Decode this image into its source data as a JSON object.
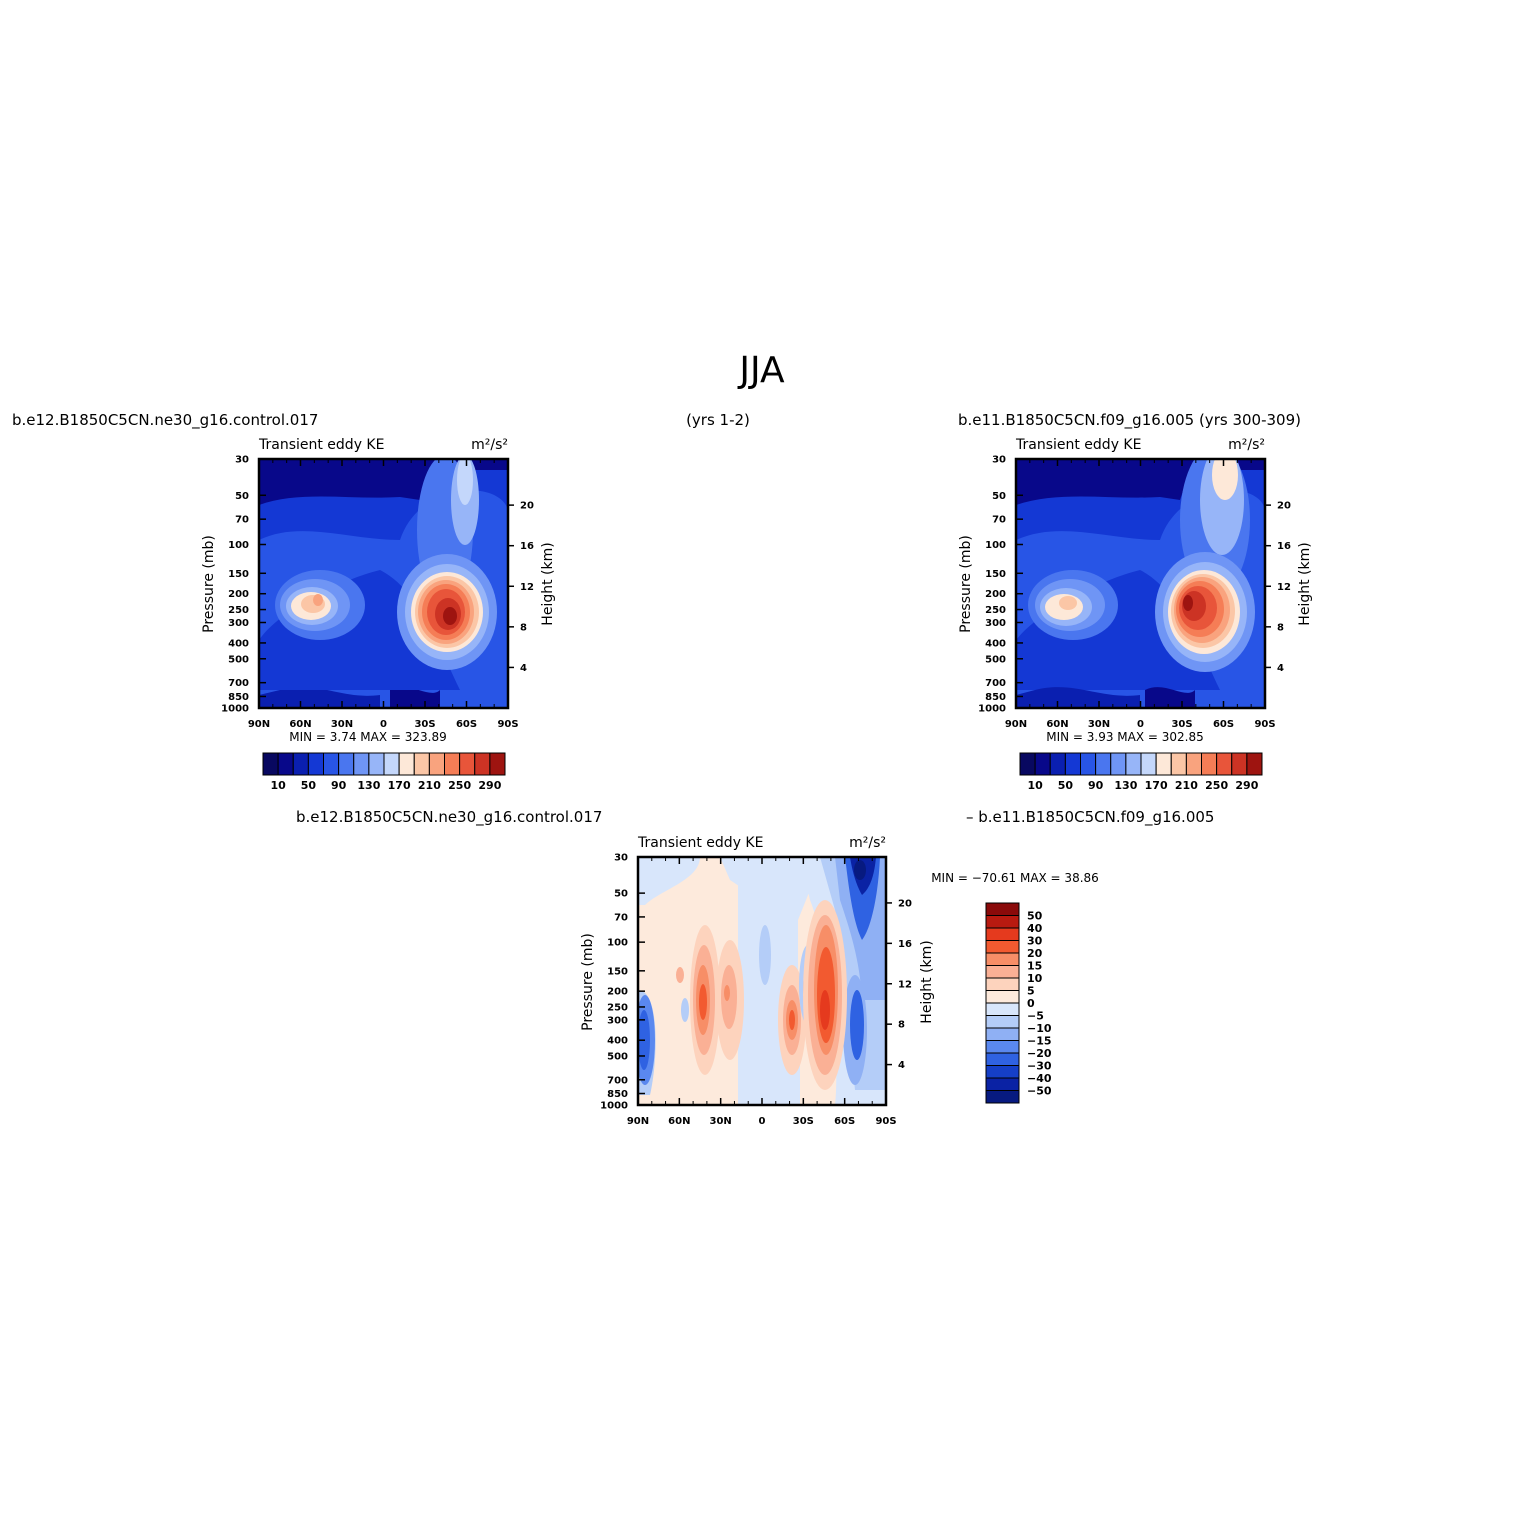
{
  "figure": {
    "title": "JJA",
    "left_header": "b.e12.B1850C5CN.ne30_g16.control.017",
    "center_header": "(yrs 1-2)",
    "right_header": "b.e11.B1850C5CN.f09_g16.005 (yrs 300-309)",
    "diff_header_left": "b.e12.B1850C5CN.ne30_g16.control.017",
    "diff_header_right": "– b.e11.B1850C5CN.f09_g16.005"
  },
  "chart_data": [
    {
      "type": "contour",
      "panel": "case1",
      "label_left": "Transient eddy KE",
      "label_right": "m²/s²",
      "ylabel": "Pressure (mb)",
      "ylabel_right": "Height (km)",
      "x_ticks": [
        "90N",
        "60N",
        "30N",
        "0",
        "30S",
        "60S",
        "90S"
      ],
      "y_ticks": [
        "30",
        "50",
        "70",
        "100",
        "150",
        "200",
        "250",
        "300",
        "400",
        "500",
        "700",
        "850",
        "1000"
      ],
      "y_ticks_right": [
        "20",
        "16",
        "12",
        "8",
        "4"
      ],
      "min_max_text": "MIN =    3.74   MAX = 323.89",
      "colorbar_ticks": [
        "10",
        "50",
        "90",
        "130",
        "170",
        "210",
        "250",
        "290"
      ],
      "features": [
        {
          "lat": -45,
          "p": 270,
          "value": 323.89
        },
        {
          "lat": 55,
          "p": 220,
          "value": 180
        }
      ]
    },
    {
      "type": "contour",
      "panel": "case2",
      "label_left": "Transient eddy KE",
      "label_right": "m²/s²",
      "ylabel": "Pressure (mb)",
      "ylabel_right": "Height (km)",
      "x_ticks": [
        "90N",
        "60N",
        "30N",
        "0",
        "30S",
        "60S",
        "90S"
      ],
      "y_ticks": [
        "30",
        "50",
        "70",
        "100",
        "150",
        "200",
        "250",
        "300",
        "400",
        "500",
        "700",
        "850",
        "1000"
      ],
      "y_ticks_right": [
        "20",
        "16",
        "12",
        "8",
        "4"
      ],
      "min_max_text": "MIN =    3.93   MAX = 302.85",
      "colorbar_ticks": [
        "10",
        "50",
        "90",
        "130",
        "170",
        "210",
        "250",
        "290"
      ],
      "features": [
        {
          "lat": -35,
          "p": 230,
          "value": 302.85
        },
        {
          "lat": 58,
          "p": 220,
          "value": 170
        }
      ]
    },
    {
      "type": "contour",
      "panel": "difference",
      "label_left": "Transient eddy KE",
      "label_right": "m²/s²",
      "ylabel": "Pressure (mb)",
      "ylabel_right": "Height (km)",
      "x_ticks": [
        "90N",
        "60N",
        "30N",
        "0",
        "30S",
        "60S",
        "90S"
      ],
      "y_ticks": [
        "30",
        "50",
        "70",
        "100",
        "150",
        "200",
        "250",
        "300",
        "400",
        "500",
        "700",
        "850",
        "1000"
      ],
      "y_ticks_right": [
        "20",
        "16",
        "12",
        "8",
        "4"
      ],
      "min_max_text": "MIN = −70.61   MAX =   38.86",
      "colorbar_ticks": [
        "50",
        "40",
        "30",
        "20",
        "15",
        "10",
        "5",
        "0",
        "−5",
        "−10",
        "−15",
        "−20",
        "−30",
        "−40",
        "−50"
      ],
      "features": [
        {
          "lat": -45,
          "p": 300,
          "value": 38.86
        },
        {
          "lat": -65,
          "p": 35,
          "value": -70.61
        }
      ]
    }
  ],
  "colors": {
    "seq": [
      "#08088a",
      "#0a1fb0",
      "#1438d4",
      "#2855e6",
      "#4a76ef",
      "#6f95f5",
      "#97b5f8",
      "#c4d7fb",
      "#fde8d8",
      "#fbc6a6",
      "#f9a37e",
      "#f57d56",
      "#e8553a",
      "#cc3324",
      "#9e1410"
    ],
    "div": [
      "#8a0a0a",
      "#b81a10",
      "#e53a1e",
      "#f25a30",
      "#f78e67",
      "#fab095",
      "#fdd3bd",
      "#fdeadc",
      "#d8e6fb",
      "#b4cdf8",
      "#8fb0f4",
      "#5a88ef",
      "#2f62e2",
      "#153fc7",
      "#0a22a4",
      "#071a80"
    ]
  }
}
